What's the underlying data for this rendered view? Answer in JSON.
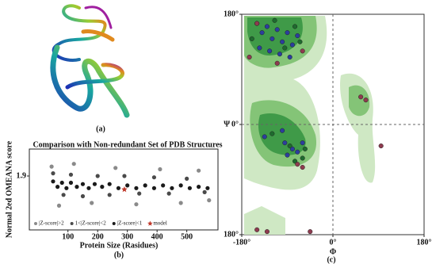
{
  "panel_a": {
    "caption": "(a)"
  },
  "chart_data": [
    {
      "type": "scatter",
      "title": "Comparison with Non-redundant Set of PDB Structures",
      "x_label": "Protein Size (Rasidues)",
      "y_label": "Normal 2ed OMEANA score",
      "caption": "(b)",
      "xlim": [
        -30,
        605
      ],
      "ylim": [
        1.5,
        2.1
      ],
      "xticks": [
        100,
        200,
        300,
        400,
        500
      ],
      "yticks": [
        1.9
      ],
      "legend": "bottom",
      "series": [
        {
          "name": "|Z-score|>2",
          "color": "#8a8a8a",
          "marker": "circle",
          "x": [
            45,
            70,
            120,
            180,
            260,
            330,
            410,
            480,
            540,
            575
          ],
          "y": [
            1.97,
            1.68,
            1.99,
            1.7,
            1.96,
            1.69,
            1.95,
            1.7,
            1.94,
            1.72
          ]
        },
        {
          "name": "1<|Z-score|<2",
          "color": "#4a4a4a",
          "marker": "circle",
          "x": [
            50,
            85,
            110,
            150,
            200,
            240,
            290,
            340,
            390,
            440,
            500,
            560
          ],
          "y": [
            1.92,
            1.76,
            1.91,
            1.75,
            1.9,
            1.76,
            1.9,
            1.77,
            1.89,
            1.77,
            1.88,
            1.78
          ]
        },
        {
          "name": "|Z-score|<1",
          "color": "#1a1a1a",
          "marker": "circle",
          "x": [
            50,
            65,
            80,
            95,
            110,
            130,
            150,
            170,
            190,
            215,
            240,
            270,
            300,
            330,
            360,
            390,
            420,
            450,
            480,
            510,
            540,
            570
          ],
          "y": [
            1.86,
            1.82,
            1.85,
            1.81,
            1.85,
            1.82,
            1.84,
            1.81,
            1.84,
            1.82,
            1.84,
            1.81,
            1.83,
            1.81,
            1.83,
            1.81,
            1.83,
            1.81,
            1.83,
            1.81,
            1.82,
            1.81
          ]
        },
        {
          "name": "model",
          "color": "#c0392b",
          "marker": "star",
          "x": [
            290
          ],
          "y": [
            1.8
          ]
        }
      ]
    },
    {
      "type": "scatter",
      "x_label": "Φ",
      "y_label": "Ψ",
      "caption": "(c)",
      "xlim": [
        -180,
        180
      ],
      "ylim": [
        -180,
        180
      ],
      "xticks": [
        {
          "value": -180,
          "label": "-180°"
        },
        {
          "value": 0,
          "label": "0°"
        },
        {
          "value": 180,
          "label": "180°"
        }
      ],
      "yticks": [
        {
          "value": -180,
          "label": "180°"
        },
        {
          "value": 0,
          "label": "0°"
        },
        {
          "value": 180,
          "label": "180°"
        }
      ],
      "series": [
        {
          "color": "#2c3e9e",
          "marker": "circle",
          "x": [
            -150,
            -140,
            -130,
            -120,
            -110,
            -100,
            -90,
            -80,
            -70,
            -145,
            -125,
            -105,
            -85,
            -135,
            -95,
            -80,
            -70,
            -60,
            -90,
            -100
          ],
          "y": [
            165,
            150,
            160,
            140,
            155,
            135,
            150,
            130,
            145,
            125,
            120,
            115,
            110,
            -20,
            -30,
            -40,
            -45,
            -30,
            -50,
            -10
          ]
        },
        {
          "color": "#1e6b2e",
          "marker": "circle",
          "x": [
            -160,
            -115,
            -95,
            -75,
            -65,
            -120,
            -85,
            -75,
            -55,
            -60
          ],
          "y": [
            140,
            170,
            125,
            160,
            135,
            -15,
            -35,
            -60,
            -40,
            -55
          ]
        },
        {
          "color": "#8e3b4f",
          "marker": "circle",
          "x": [
            -165,
            -150,
            -110,
            -60,
            -70,
            55,
            65,
            95,
            -130,
            -45,
            -150,
            -60
          ],
          "y": [
            110,
            165,
            100,
            120,
            -65,
            45,
            40,
            -35,
            -175,
            -175,
            -172,
            -70
          ]
        }
      ]
    }
  ]
}
